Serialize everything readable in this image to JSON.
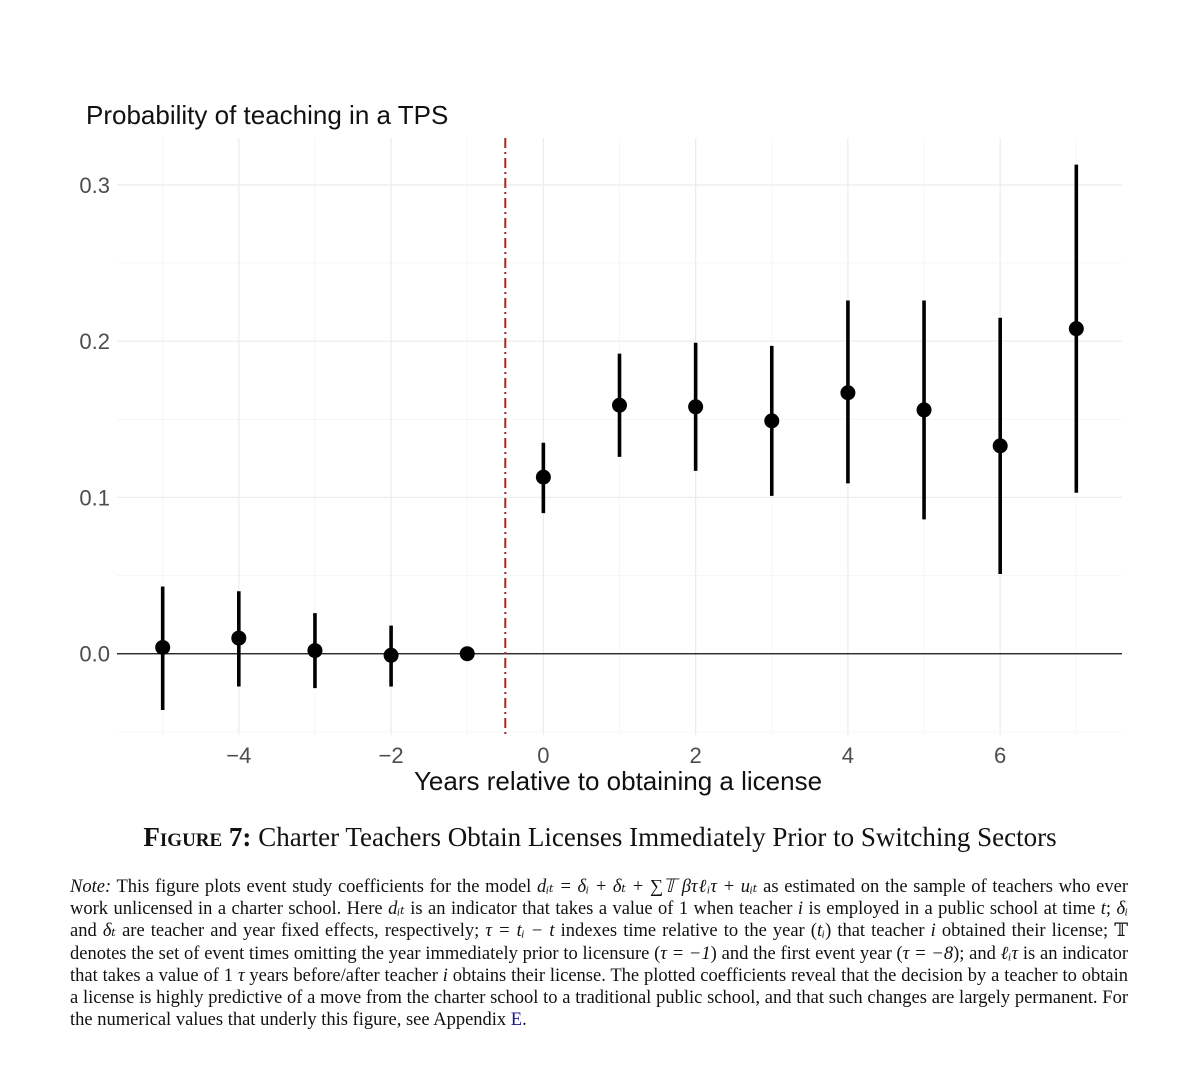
{
  "chart_data": {
    "type": "scatter",
    "subtype": "point-range (coefficient with confidence interval)",
    "title": "Probability of teaching in a TPS",
    "xlabel": "Years relative to obtaining a license",
    "ylabel": "",
    "x_ticks": [
      -4,
      -2,
      0,
      2,
      4,
      6
    ],
    "x_tick_labels": [
      "−4",
      "−2",
      "0",
      "2",
      "4",
      "6"
    ],
    "y_ticks": [
      0.0,
      0.1,
      0.2,
      0.3
    ],
    "y_tick_labels": [
      "0.0",
      "0.1",
      "0.2",
      "0.3"
    ],
    "xlim": [
      -5.6,
      7.6
    ],
    "ylim": [
      -0.052,
      0.33
    ],
    "grid": true,
    "reference_hline": 0.0,
    "reference_vline": -0.5,
    "reference_vline_color": "#b22222",
    "points": [
      {
        "x": -5,
        "y": 0.004,
        "lo": -0.036,
        "hi": 0.043
      },
      {
        "x": -4,
        "y": 0.01,
        "lo": -0.021,
        "hi": 0.04
      },
      {
        "x": -3,
        "y": 0.002,
        "lo": -0.022,
        "hi": 0.026
      },
      {
        "x": -2,
        "y": -0.001,
        "lo": -0.021,
        "hi": 0.018
      },
      {
        "x": -1,
        "y": 0.0,
        "lo": 0.0,
        "hi": 0.0
      },
      {
        "x": 0,
        "y": 0.113,
        "lo": 0.09,
        "hi": 0.135
      },
      {
        "x": 1,
        "y": 0.159,
        "lo": 0.126,
        "hi": 0.192
      },
      {
        "x": 2,
        "y": 0.158,
        "lo": 0.117,
        "hi": 0.199
      },
      {
        "x": 3,
        "y": 0.149,
        "lo": 0.101,
        "hi": 0.197
      },
      {
        "x": 4,
        "y": 0.167,
        "lo": 0.109,
        "hi": 0.226
      },
      {
        "x": 5,
        "y": 0.156,
        "lo": 0.086,
        "hi": 0.226
      },
      {
        "x": 6,
        "y": 0.133,
        "lo": 0.051,
        "hi": 0.215
      },
      {
        "x": 7,
        "y": 0.208,
        "lo": 0.103,
        "hi": 0.313
      }
    ]
  },
  "caption": {
    "label": "Figure 7:",
    "text": " Charter Teachers Obtain Licenses Immediately Prior to Switching Sectors"
  },
  "note": {
    "label": "Note:",
    "p1": " This figure plots event study coefficients for the model ",
    "model": "dᵢₜ = δᵢ + δₜ + ∑𝕋 βτℓᵢτ + uᵢₜ",
    "p2": " as estimated on the sample of teachers who ever work unlicensed in a charter school. Here ",
    "d_it": "dᵢₜ",
    "p3": " is an indicator that takes a value of 1 when teacher ",
    "i1": "i",
    "p4": " is employed in a public school at time ",
    "t1": "t",
    "p5": "; ",
    "delta_i": "δᵢ",
    "p6": " and ",
    "delta_t": "δₜ",
    "p7": " are teacher and year fixed effects, respectively; ",
    "tau_def": "τ = tᵢ − t",
    "p8": " indexes time relative to the year (",
    "t_i": "tᵢ",
    "p9": ") that teacher ",
    "i2": "i",
    "p10": " obtained their license; ",
    "T_set": "𝕋",
    "p11": " denotes the set of event times omitting the year immediately prior to licensure (",
    "tau_m1": "τ = −1",
    "p12": ") and the first event year (",
    "tau_m8": "τ = −8",
    "p13": "); and ",
    "ell": "ℓᵢτ",
    "p14": " is an indicator that takes a value of 1 ",
    "tau": "τ",
    "p15": " years before/after teacher ",
    "i3": "i",
    "p16": " obtains their license. The plotted coefficients reveal that the decision by a teacher to obtain a license is highly predictive of a move from the charter school to a traditional public school, and that such changes are largely permanent. For the numerical values that underly this figure, see Appendix ",
    "appendix": "E",
    "p17": "."
  }
}
